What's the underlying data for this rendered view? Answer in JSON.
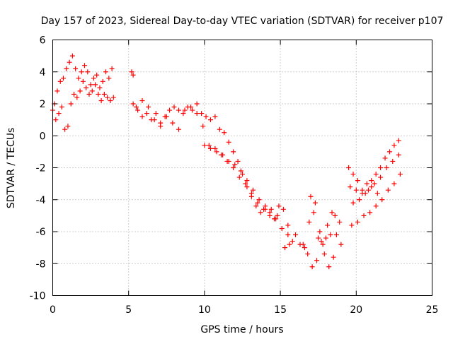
{
  "chart_data": {
    "type": "scatter",
    "title": "Day 157 of 2023, Sidereal Day-to-day VTEC variation (SDTVAR) for receiver p107",
    "xlabel": "GPS time / hours",
    "ylabel": "SDTVAR / TECUs",
    "xlim": [
      0,
      25
    ],
    "ylim": [
      -10,
      6
    ],
    "x_ticks": [
      "0",
      "5",
      "10",
      "15",
      "20",
      "25"
    ],
    "y_ticks": [
      "-10",
      "-8",
      "-6",
      "-4",
      "-2",
      "0",
      "2",
      "4",
      "6"
    ],
    "grid": true,
    "legend": "none",
    "marker": "plus",
    "series": [
      {
        "color": "#ff0000",
        "x": [
          0.0,
          0.2,
          0.4,
          0.6,
          0.8,
          1.0,
          1.2,
          1.4,
          1.6,
          1.8,
          2.0,
          2.2,
          2.4,
          2.6,
          2.8,
          3.0,
          3.2,
          3.4,
          3.6,
          3.8,
          4.0,
          0.1,
          0.3,
          0.5,
          0.7,
          0.9,
          1.1,
          1.3,
          1.5,
          1.7,
          1.9,
          2.1,
          2.3,
          2.5,
          2.7,
          2.9,
          3.1,
          3.3,
          3.5,
          3.7,
          3.9,
          5.3,
          5.6,
          5.9,
          6.2,
          6.5,
          6.8,
          7.1,
          7.4,
          7.7,
          8.0,
          8.3,
          8.6,
          8.9,
          9.2,
          9.5,
          9.8,
          10.1,
          10.4,
          10.7,
          11.0,
          11.3,
          11.6,
          11.9,
          12.2,
          12.5,
          12.8,
          13.1,
          13.4,
          13.7,
          14.0,
          14.3,
          14.6,
          14.9,
          15.2,
          15.5,
          5.5,
          5.9,
          6.3,
          6.7,
          7.1,
          7.5,
          7.9,
          8.3,
          8.7,
          9.1,
          9.5,
          9.9,
          10.3,
          10.7,
          11.1,
          11.5,
          11.9,
          12.3,
          12.7,
          13.1,
          13.5,
          13.9,
          14.3,
          14.7,
          15.1,
          15.5,
          15.8,
          10.0,
          10.4,
          10.8,
          11.2,
          11.6,
          12.0,
          12.4,
          12.8,
          13.2,
          13.6,
          14.0,
          14.4,
          14.8,
          15.3,
          15.6,
          16.0,
          16.3,
          16.6,
          16.9,
          17.2,
          17.5,
          17.8,
          18.1,
          18.4,
          18.7,
          19.0,
          16.5,
          16.8,
          17.1,
          17.4,
          17.7,
          18.0,
          18.3,
          18.6,
          18.9,
          17.0,
          17.3,
          17.6,
          17.9,
          18.2,
          18.5,
          19.5,
          19.8,
          20.1,
          20.4,
          20.7,
          21.0,
          21.3,
          21.6,
          21.9,
          22.2,
          22.5,
          22.8,
          19.6,
          20.0,
          20.4,
          20.8,
          21.2,
          21.6,
          22.0,
          22.4,
          22.8,
          19.7,
          20.1,
          20.5,
          20.9,
          21.3,
          21.7,
          22.1,
          22.5,
          22.9,
          19.8,
          20.2,
          20.6,
          21.0,
          21.4,
          5.2,
          5.3
        ],
        "y": [
          1.6,
          1.0,
          1.4,
          1.8,
          0.4,
          0.6,
          2.0,
          2.6,
          2.4,
          2.8,
          3.4,
          3.0,
          2.6,
          2.8,
          3.2,
          2.6,
          2.2,
          2.6,
          2.4,
          2.2,
          2.4,
          2.0,
          2.8,
          3.4,
          3.6,
          4.2,
          4.6,
          5.0,
          4.2,
          3.6,
          4.0,
          4.4,
          4.0,
          3.2,
          3.6,
          3.8,
          3.0,
          3.4,
          4.0,
          3.6,
          4.2,
          2.0,
          1.6,
          2.2,
          1.4,
          1.0,
          1.4,
          0.8,
          1.2,
          1.6,
          1.8,
          1.6,
          1.4,
          1.8,
          1.6,
          2.0,
          1.4,
          1.2,
          1.0,
          1.2,
          0.4,
          0.2,
          -0.4,
          -1.0,
          -1.6,
          -2.4,
          -3.2,
          -3.8,
          -4.4,
          -4.8,
          -4.6,
          -4.8,
          -5.2,
          -4.4,
          -4.6,
          -5.6,
          1.8,
          1.2,
          1.8,
          1.0,
          0.6,
          1.2,
          0.8,
          0.4,
          1.6,
          1.8,
          1.4,
          0.6,
          -0.6,
          -0.8,
          -1.2,
          -1.6,
          -2.0,
          -2.6,
          -3.0,
          -3.6,
          -4.2,
          -4.6,
          -5.0,
          -5.2,
          -5.8,
          -6.2,
          -6.6,
          -0.6,
          -0.8,
          -1.0,
          -1.2,
          -1.6,
          -1.8,
          -2.2,
          -2.8,
          -3.4,
          -4.0,
          -4.4,
          -4.6,
          -5.0,
          -7.0,
          -6.8,
          -6.2,
          -6.8,
          -7.0,
          -5.4,
          -4.8,
          -6.4,
          -6.8,
          -5.6,
          -4.8,
          -6.2,
          -6.8,
          -6.8,
          -7.4,
          -8.2,
          -7.8,
          -6.6,
          -6.4,
          -6.2,
          -5.0,
          -5.4,
          -3.8,
          -4.2,
          -6.0,
          -7.4,
          -8.2,
          -7.6,
          -2.0,
          -2.4,
          -2.8,
          -3.4,
          -3.0,
          -2.8,
          -2.4,
          -2.0,
          -1.4,
          -1.0,
          -0.6,
          -0.3,
          -3.2,
          -3.4,
          -3.6,
          -3.4,
          -3.0,
          -2.6,
          -2.0,
          -1.6,
          -1.2,
          -5.6,
          -5.4,
          -5.0,
          -4.8,
          -4.4,
          -4.0,
          -3.4,
          -3.0,
          -2.4,
          -4.2,
          -4.0,
          -3.6,
          -3.2,
          -3.6,
          4.0,
          3.8
        ]
      }
    ]
  }
}
